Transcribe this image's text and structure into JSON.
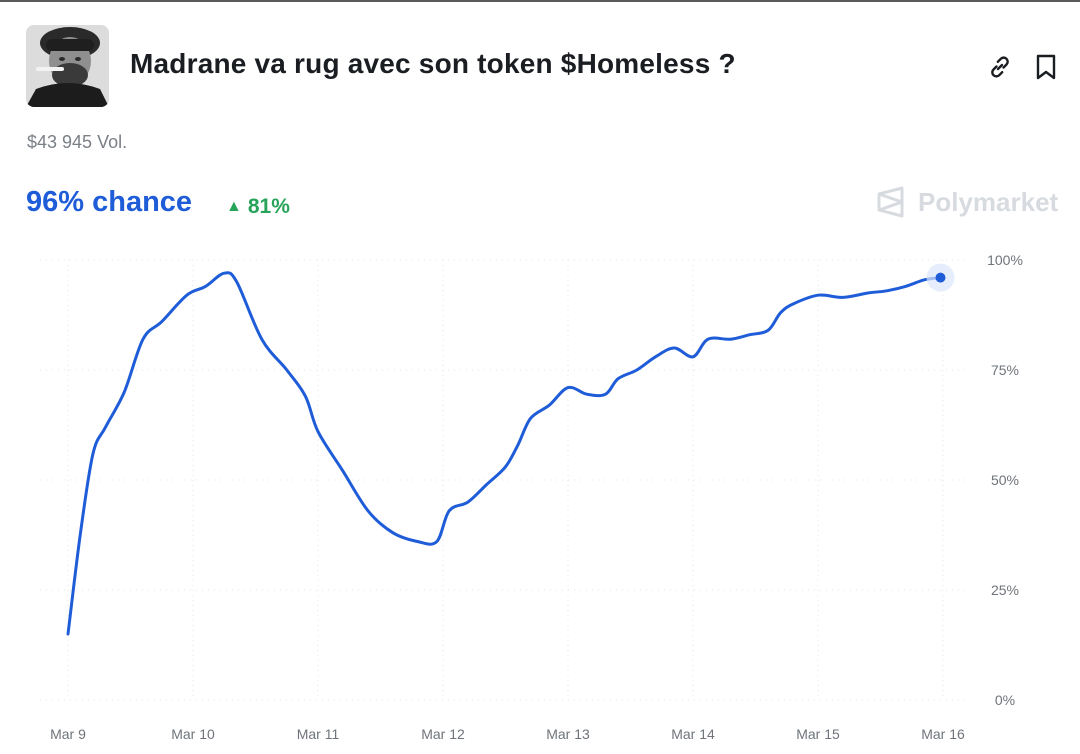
{
  "market": {
    "title": "Madrane va rug avec son token $Homeless ?",
    "volume": "$43 945 Vol.",
    "chance": "96% chance",
    "change_arrow": "▲",
    "change_value": "81%",
    "brand": "Polymarket"
  },
  "icons": {
    "avatar": "avatar-portrait",
    "link": "link-icon",
    "bookmark": "bookmark-icon",
    "brand_logo": "polymarket-logo-icon"
  },
  "colors": {
    "line": "#1e5cd8",
    "chance_text": "#1e5cd8",
    "change_text": "#27a35a",
    "brand": "#d7dbe0",
    "grid": "#e3e5e8"
  },
  "chart_data": {
    "type": "line",
    "title": "",
    "xlabel": "",
    "ylabel": "",
    "x_ticks": [
      "Mar 9",
      "Mar 10",
      "Mar 11",
      "Mar 12",
      "Mar 13",
      "Mar 14",
      "Mar 15",
      "Mar 16"
    ],
    "y_ticks": [
      "0%",
      "25%",
      "50%",
      "75%",
      "100%"
    ],
    "ylim": [
      0,
      100
    ],
    "xlim": [
      0,
      7
    ],
    "grid": true,
    "legend": "none",
    "series": [
      {
        "points": [
          [
            0.0,
            15
          ],
          [
            0.1,
            38
          ],
          [
            0.2,
            56
          ],
          [
            0.3,
            62
          ],
          [
            0.45,
            70
          ],
          [
            0.6,
            82
          ],
          [
            0.75,
            86
          ],
          [
            0.95,
            92
          ],
          [
            1.1,
            94
          ],
          [
            1.25,
            97
          ],
          [
            1.35,
            95
          ],
          [
            1.55,
            82
          ],
          [
            1.75,
            75
          ],
          [
            1.9,
            69
          ],
          [
            2.0,
            61
          ],
          [
            2.2,
            52
          ],
          [
            2.4,
            43
          ],
          [
            2.6,
            38
          ],
          [
            2.8,
            36
          ],
          [
            2.95,
            36
          ],
          [
            3.05,
            43
          ],
          [
            3.2,
            45
          ],
          [
            3.35,
            49
          ],
          [
            3.5,
            53
          ],
          [
            3.6,
            58
          ],
          [
            3.7,
            64
          ],
          [
            3.85,
            67
          ],
          [
            4.0,
            71
          ],
          [
            4.15,
            69.5
          ],
          [
            4.3,
            69.5
          ],
          [
            4.4,
            73
          ],
          [
            4.55,
            75
          ],
          [
            4.7,
            78
          ],
          [
            4.85,
            80
          ],
          [
            5.0,
            78
          ],
          [
            5.12,
            82
          ],
          [
            5.3,
            82
          ],
          [
            5.45,
            83
          ],
          [
            5.6,
            84
          ],
          [
            5.7,
            88
          ],
          [
            5.8,
            90
          ],
          [
            6.0,
            92
          ],
          [
            6.2,
            91.5
          ],
          [
            6.4,
            92.5
          ],
          [
            6.55,
            93
          ],
          [
            6.7,
            94
          ],
          [
            6.85,
            95.5
          ],
          [
            6.98,
            96
          ]
        ]
      }
    ]
  }
}
